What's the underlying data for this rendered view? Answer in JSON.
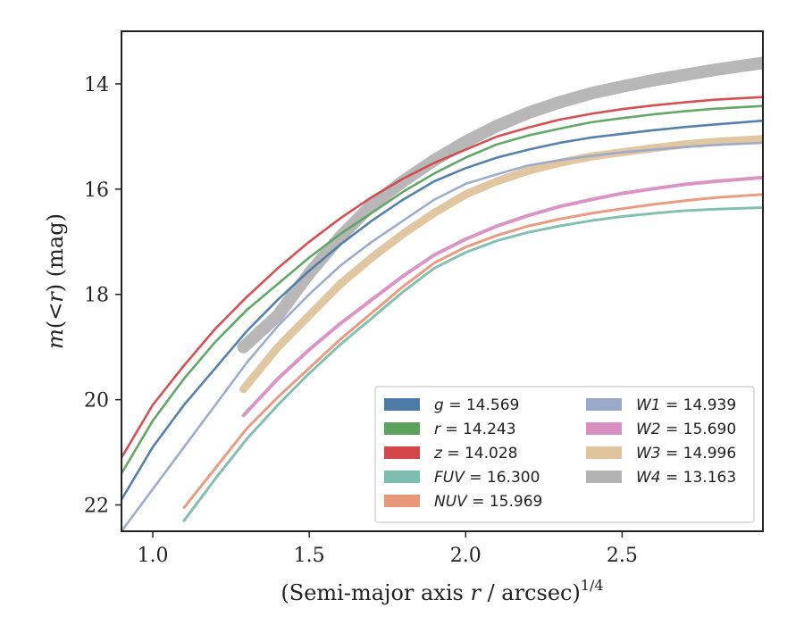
{
  "chart_data": {
    "type": "line",
    "xlabel": "(Semi-major axis r / arcsec)^{1/4}",
    "xlabel_parts": {
      "pre": "(Semi-major axis ",
      "var": "r",
      "mid": " / arcsec)",
      "sup": "1/4"
    },
    "ylabel": "m(<r) (mag)",
    "ylabel_parts": {
      "var": "m",
      "open": "(",
      "lt": "<",
      "rvar": "r",
      "close": ") (mag)"
    },
    "xlim": [
      0.9,
      2.95
    ],
    "ylim": [
      22.5,
      13.0
    ],
    "y_inverted": true,
    "xticks": [
      1.0,
      1.5,
      2.0,
      2.5
    ],
    "xtick_labels": [
      "1.0",
      "1.5",
      "2.0",
      "2.5"
    ],
    "yticks": [
      14,
      16,
      18,
      20,
      22
    ],
    "ytick_labels": [
      "14",
      "16",
      "18",
      "20",
      "22"
    ],
    "grid": false,
    "legend_position": "lower-right",
    "series": [
      {
        "band": "g",
        "value": "14.569",
        "color": "#4c7ba8",
        "width": 2.6,
        "x": [
          0.9,
          1.0,
          1.1,
          1.2,
          1.3,
          1.4,
          1.5,
          1.6,
          1.7,
          1.8,
          1.9,
          2.0,
          2.1,
          2.2,
          2.3,
          2.4,
          2.5,
          2.6,
          2.7,
          2.8,
          2.95
        ],
        "y": [
          21.9,
          20.9,
          20.1,
          19.4,
          18.7,
          18.1,
          17.55,
          17.05,
          16.6,
          16.2,
          15.85,
          15.6,
          15.4,
          15.25,
          15.12,
          15.02,
          14.95,
          14.88,
          14.82,
          14.77,
          14.7
        ]
      },
      {
        "band": "r",
        "value": "14.243",
        "color": "#5ba35e",
        "width": 2.6,
        "x": [
          0.9,
          1.0,
          1.1,
          1.2,
          1.3,
          1.4,
          1.5,
          1.6,
          1.7,
          1.8,
          1.9,
          2.0,
          2.1,
          2.2,
          2.3,
          2.4,
          2.5,
          2.6,
          2.7,
          2.8,
          2.95
        ],
        "y": [
          21.4,
          20.4,
          19.6,
          18.9,
          18.3,
          17.8,
          17.3,
          16.85,
          16.45,
          16.05,
          15.7,
          15.4,
          15.15,
          14.98,
          14.85,
          14.73,
          14.65,
          14.58,
          14.52,
          14.47,
          14.42
        ]
      },
      {
        "band": "z",
        "value": "14.028",
        "color": "#d3474a",
        "width": 2.6,
        "x": [
          0.9,
          1.0,
          1.1,
          1.2,
          1.3,
          1.4,
          1.5,
          1.6,
          1.7,
          1.8,
          1.9,
          2.0,
          2.1,
          2.2,
          2.3,
          2.4,
          2.5,
          2.6,
          2.7,
          2.8,
          2.95
        ],
        "y": [
          21.1,
          20.1,
          19.35,
          18.65,
          18.05,
          17.5,
          17.0,
          16.55,
          16.15,
          15.8,
          15.5,
          15.25,
          15.0,
          14.83,
          14.68,
          14.57,
          14.48,
          14.41,
          14.35,
          14.3,
          14.25
        ]
      },
      {
        "band": "FUV",
        "value": "16.300",
        "color": "#7dbdae",
        "width": 3.0,
        "x": [
          1.1,
          1.2,
          1.3,
          1.4,
          1.5,
          1.6,
          1.7,
          1.8,
          1.9,
          2.0,
          2.1,
          2.2,
          2.3,
          2.4,
          2.5,
          2.6,
          2.7,
          2.8,
          2.95
        ],
        "y": [
          22.3,
          21.5,
          20.75,
          20.1,
          19.5,
          18.95,
          18.45,
          17.95,
          17.5,
          17.2,
          16.98,
          16.82,
          16.7,
          16.6,
          16.52,
          16.46,
          16.41,
          16.38,
          16.35
        ]
      },
      {
        "band": "NUV",
        "value": "15.969",
        "color": "#e9977a",
        "width": 3.0,
        "x": [
          1.1,
          1.2,
          1.3,
          1.4,
          1.5,
          1.6,
          1.7,
          1.8,
          1.9,
          2.0,
          2.1,
          2.2,
          2.3,
          2.4,
          2.5,
          2.6,
          2.7,
          2.8,
          2.95
        ],
        "y": [
          22.05,
          21.3,
          20.55,
          19.95,
          19.4,
          18.85,
          18.35,
          17.85,
          17.4,
          17.1,
          16.88,
          16.7,
          16.57,
          16.46,
          16.37,
          16.29,
          16.22,
          16.16,
          16.1
        ]
      },
      {
        "band": "W1",
        "value": "14.939",
        "color": "#9aa9c9",
        "width": 2.6,
        "x": [
          0.9,
          1.0,
          1.1,
          1.2,
          1.3,
          1.4,
          1.5,
          1.6,
          1.7,
          1.8,
          1.9,
          2.0,
          2.1,
          2.2,
          2.3,
          2.4,
          2.5,
          2.6,
          2.7,
          2.8,
          2.95
        ],
        "y": [
          22.5,
          21.7,
          20.9,
          20.1,
          19.3,
          18.6,
          18.0,
          17.45,
          17.0,
          16.6,
          16.2,
          15.9,
          15.72,
          15.55,
          15.45,
          15.37,
          15.3,
          15.25,
          15.2,
          15.16,
          15.12
        ]
      },
      {
        "band": "W2",
        "value": "15.690",
        "color": "#d88fc2",
        "width": 4.0,
        "x": [
          1.29,
          1.4,
          1.5,
          1.6,
          1.7,
          1.8,
          1.9,
          2.0,
          2.1,
          2.2,
          2.3,
          2.4,
          2.5,
          2.6,
          2.7,
          2.8,
          2.95
        ],
        "y": [
          20.3,
          19.6,
          19.05,
          18.55,
          18.1,
          17.65,
          17.25,
          16.95,
          16.7,
          16.5,
          16.33,
          16.2,
          16.08,
          15.99,
          15.91,
          15.85,
          15.78
        ]
      },
      {
        "band": "W3",
        "value": "14.996",
        "color": "#dfc49c",
        "width": 9.0,
        "x": [
          1.29,
          1.4,
          1.5,
          1.6,
          1.7,
          1.8,
          1.9,
          2.0,
          2.1,
          2.2,
          2.3,
          2.4,
          2.5,
          2.6,
          2.7,
          2.8,
          2.95
        ],
        "y": [
          19.8,
          19.0,
          18.4,
          17.8,
          17.3,
          16.85,
          16.45,
          16.1,
          15.85,
          15.65,
          15.5,
          15.38,
          15.3,
          15.22,
          15.15,
          15.1,
          15.05
        ]
      },
      {
        "band": "W4",
        "value": "13.163",
        "color": "#b3b3b3",
        "width": 14.0,
        "x": [
          1.29,
          1.4,
          1.5,
          1.6,
          1.7,
          1.8,
          1.9,
          2.0,
          2.1,
          2.2,
          2.3,
          2.4,
          2.5,
          2.6,
          2.7,
          2.8,
          2.95
        ],
        "y": [
          19.0,
          18.4,
          17.6,
          16.9,
          16.3,
          15.85,
          15.45,
          15.1,
          14.8,
          14.55,
          14.35,
          14.18,
          14.05,
          13.93,
          13.83,
          13.73,
          13.6
        ]
      }
    ]
  }
}
